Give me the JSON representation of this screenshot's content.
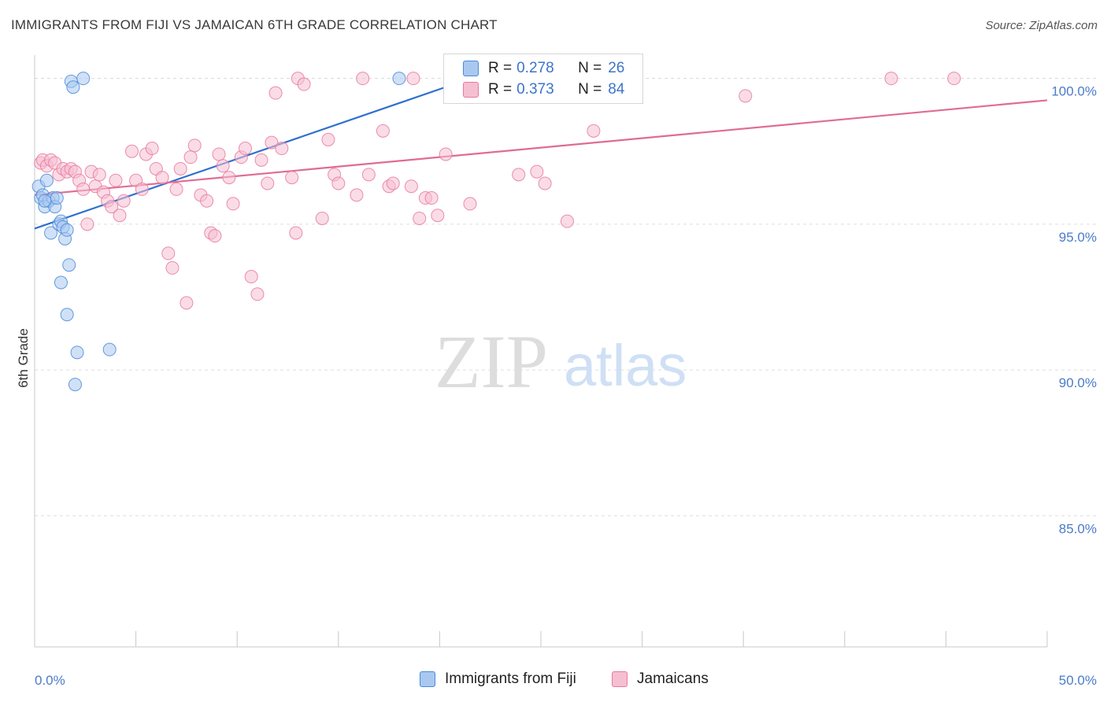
{
  "header": {
    "title": "IMMIGRANTS FROM FIJI VS JAMAICAN 6TH GRADE CORRELATION CHART",
    "source": "Source: ZipAtlas.com"
  },
  "watermark": {
    "zip": "ZIP",
    "atlas": "atlas"
  },
  "colors": {
    "fiji": "#4a8ad8",
    "fiji_fill": "#a9c8f0",
    "jamaica": "#e8799e",
    "jamaica_fill": "#f6bfd1",
    "tick": "#4a7cc9",
    "grid": "#dddddd"
  },
  "legend_top": {
    "rows": [
      {
        "r_label": "R =",
        "r_value": "0.278",
        "n_label": "N =",
        "n_value": "26"
      },
      {
        "r_label": "R =",
        "r_value": "0.373",
        "n_label": "N =",
        "n_value": "84"
      }
    ]
  },
  "legend_bottom": {
    "items": [
      {
        "label": "Immigrants from Fiji"
      },
      {
        "label": "Jamaicans"
      }
    ]
  },
  "chart_data": {
    "type": "scatter",
    "title": "IMMIGRANTS FROM FIJI VS JAMAICAN 6TH GRADE CORRELATION CHART",
    "xlabel": "",
    "ylabel": "6th Grade",
    "xlim": [
      0,
      50
    ],
    "ylim": [
      80.5,
      100.8
    ],
    "x_tick_labels": [
      "0.0%",
      "50.0%"
    ],
    "y_ticks": [
      85,
      90,
      95,
      100
    ],
    "y_tick_labels": [
      "85.0%",
      "90.0%",
      "95.0%",
      "100.0%"
    ],
    "grid": true,
    "series": [
      {
        "name": "Immigrants from Fiji",
        "r": 0.278,
        "n": 26,
        "trend": {
          "x": [
            0,
            20.5
          ],
          "y": [
            94.85,
            99.75
          ]
        },
        "points": [
          [
            0.2,
            96.3
          ],
          [
            0.3,
            95.9
          ],
          [
            0.4,
            96.0
          ],
          [
            0.5,
            95.6
          ],
          [
            0.6,
            96.5
          ],
          [
            0.7,
            95.8
          ],
          [
            0.8,
            94.7
          ],
          [
            0.9,
            95.9
          ],
          [
            1.0,
            95.6
          ],
          [
            1.1,
            95.9
          ],
          [
            1.2,
            95.0
          ],
          [
            1.3,
            95.1
          ],
          [
            1.4,
            94.9
          ],
          [
            1.5,
            94.5
          ],
          [
            1.6,
            94.8
          ],
          [
            1.7,
            93.6
          ],
          [
            1.8,
            99.9
          ],
          [
            1.9,
            99.7
          ],
          [
            2.0,
            89.5
          ],
          [
            2.1,
            90.6
          ],
          [
            2.4,
            100.0
          ],
          [
            3.7,
            90.7
          ],
          [
            1.6,
            91.9
          ],
          [
            1.3,
            93.0
          ],
          [
            18.0,
            100.0
          ],
          [
            0.5,
            95.8
          ]
        ]
      },
      {
        "name": "Jamaicans",
        "r": 0.373,
        "n": 84,
        "trend": {
          "x": [
            0,
            50
          ],
          "y": [
            96.0,
            99.25
          ]
        },
        "points": [
          [
            0.3,
            97.1
          ],
          [
            0.4,
            97.2
          ],
          [
            0.6,
            97.0
          ],
          [
            0.8,
            97.2
          ],
          [
            1.0,
            97.1
          ],
          [
            1.2,
            96.7
          ],
          [
            1.4,
            96.9
          ],
          [
            1.6,
            96.8
          ],
          [
            1.8,
            96.9
          ],
          [
            2.0,
            96.8
          ],
          [
            2.2,
            96.5
          ],
          [
            2.4,
            96.2
          ],
          [
            2.6,
            95.0
          ],
          [
            2.8,
            96.8
          ],
          [
            3.0,
            96.3
          ],
          [
            3.2,
            96.7
          ],
          [
            3.4,
            96.1
          ],
          [
            3.6,
            95.8
          ],
          [
            3.8,
            95.6
          ],
          [
            4.0,
            96.5
          ],
          [
            4.2,
            95.3
          ],
          [
            4.4,
            95.8
          ],
          [
            4.8,
            97.5
          ],
          [
            5.0,
            96.5
          ],
          [
            5.3,
            96.2
          ],
          [
            5.5,
            97.4
          ],
          [
            5.8,
            97.6
          ],
          [
            6.0,
            96.9
          ],
          [
            6.3,
            96.6
          ],
          [
            6.6,
            94.0
          ],
          [
            6.8,
            93.5
          ],
          [
            7.0,
            96.2
          ],
          [
            7.2,
            96.9
          ],
          [
            7.5,
            92.3
          ],
          [
            7.7,
            97.3
          ],
          [
            7.9,
            97.7
          ],
          [
            8.2,
            96.0
          ],
          [
            8.5,
            95.8
          ],
          [
            8.7,
            94.7
          ],
          [
            8.9,
            94.6
          ],
          [
            9.1,
            97.4
          ],
          [
            9.3,
            97.0
          ],
          [
            9.6,
            96.6
          ],
          [
            9.8,
            95.7
          ],
          [
            10.2,
            97.3
          ],
          [
            10.4,
            97.6
          ],
          [
            10.7,
            93.2
          ],
          [
            11.0,
            92.6
          ],
          [
            11.2,
            97.2
          ],
          [
            11.5,
            96.4
          ],
          [
            11.7,
            97.8
          ],
          [
            11.9,
            99.5
          ],
          [
            12.2,
            97.6
          ],
          [
            12.7,
            96.6
          ],
          [
            12.9,
            94.7
          ],
          [
            13.0,
            100.0
          ],
          [
            13.3,
            99.8
          ],
          [
            14.2,
            95.2
          ],
          [
            14.5,
            97.9
          ],
          [
            14.8,
            96.7
          ],
          [
            15.0,
            96.4
          ],
          [
            15.9,
            96.0
          ],
          [
            16.2,
            100.0
          ],
          [
            16.5,
            96.7
          ],
          [
            17.2,
            98.2
          ],
          [
            17.5,
            96.3
          ],
          [
            17.7,
            96.4
          ],
          [
            18.7,
            100.0
          ],
          [
            19.0,
            95.2
          ],
          [
            19.3,
            95.9
          ],
          [
            19.6,
            95.9
          ],
          [
            19.9,
            95.3
          ],
          [
            20.3,
            97.4
          ],
          [
            21.5,
            95.7
          ],
          [
            23.9,
            96.7
          ],
          [
            24.8,
            96.8
          ],
          [
            25.2,
            96.4
          ],
          [
            26.3,
            95.1
          ],
          [
            26.8,
            100.0
          ],
          [
            27.6,
            98.2
          ],
          [
            35.1,
            99.4
          ],
          [
            42.3,
            100.0
          ],
          [
            45.4,
            100.0
          ],
          [
            18.6,
            96.3
          ]
        ]
      }
    ]
  }
}
